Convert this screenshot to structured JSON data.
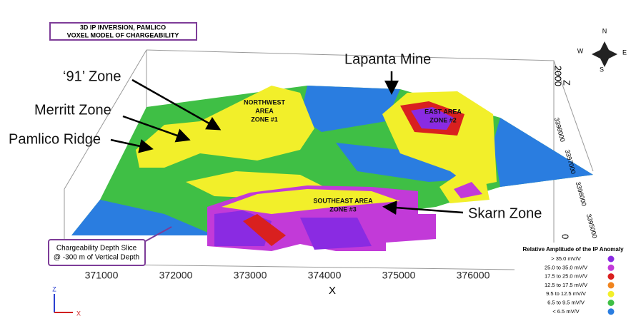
{
  "title_box": {
    "lines": [
      "3D IP INVERSION, PAMLICO",
      "VOXEL MODEL OF CHARGEABILITY"
    ]
  },
  "callouts": [
    "‘91’ Zone",
    "Merritt Zone",
    "Pamlico Ridge",
    "Lapanta Mine",
    "Skarn Zone"
  ],
  "area_labels": {
    "northwest": [
      "NORTHWEST",
      "AREA",
      "ZONE #1"
    ],
    "east": [
      "EAST AREA",
      "ZONE #2"
    ],
    "southeast": [
      "SOUTHEAST AREA",
      "ZONE #3"
    ]
  },
  "depth_box": [
    "Chargeability Depth Slice",
    "@ -300 m of Vertical Depth"
  ],
  "x_axis": {
    "label": "X",
    "ticks": [
      "371000",
      "372000",
      "373000",
      "374000",
      "375000",
      "376000"
    ]
  },
  "z_axis": {
    "label": "Z",
    "ticks": [
      "2000",
      "0"
    ]
  },
  "y_axis": {
    "ticks": [
      "3398000",
      "3397000",
      "3396000",
      "3395000"
    ]
  },
  "compass": {
    "n": "N",
    "e": "E",
    "s": "S",
    "w": "W"
  },
  "triad": {
    "z": "Z",
    "x": "X"
  },
  "legend": {
    "title": "Relative Amplitude of the IP Anomaly",
    "items": [
      {
        "label": ">  35.0 mV/V",
        "color": "#8a2be2"
      },
      {
        "label": "25.0 to 35.0 mV/V",
        "color": "#c23ad8"
      },
      {
        "label": "17.5 to 25.0 mV/V",
        "color": "#d9201f"
      },
      {
        "label": "12.5 to 17.5 mV/V",
        "color": "#f0841f"
      },
      {
        "label": "9.5 to 12.5 mV/V",
        "color": "#f2ef2a"
      },
      {
        "label": "6.5 to 9.5 mV/V",
        "color": "#3fbf45"
      },
      {
        "label": "< 6.5 mV/V",
        "color": "#2a7de0"
      }
    ]
  }
}
